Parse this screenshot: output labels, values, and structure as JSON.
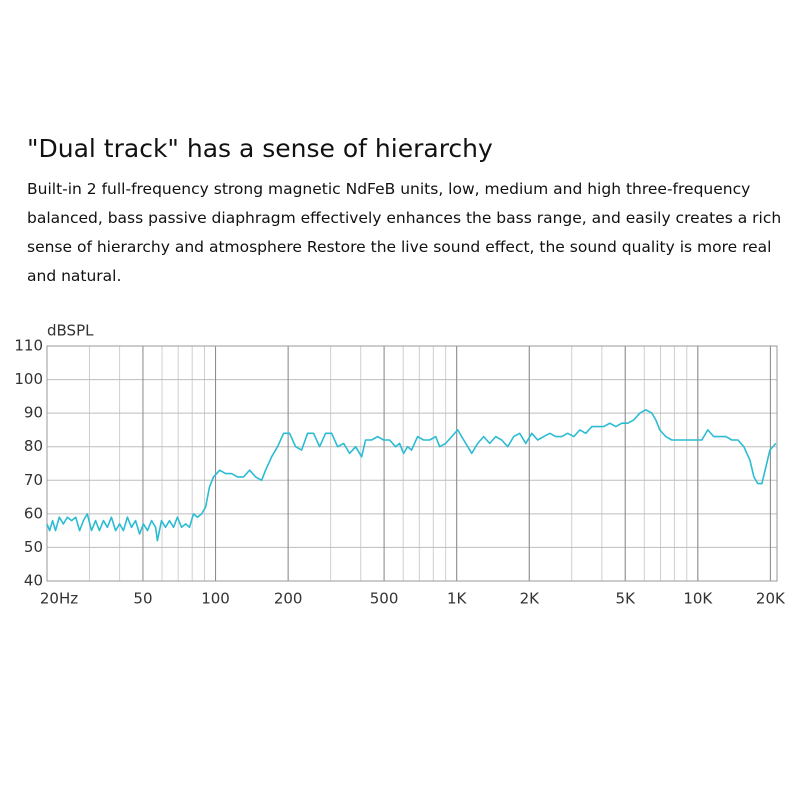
{
  "heading": "\"Dual track\" has a sense of hierarchy",
  "paragraph": [
    "Built-in 2 full-frequency  strong magnetic NdFeB units, low, medium and high three-frequency",
    "balanced, bass passive diaphragm effectively enhances the bass range, and easily creates a rich",
    "sense of hierarchy and atmosphere Restore the live sound effect, the sound quality is more real",
    "and natural."
  ],
  "chart_data": {
    "type": "line",
    "y_label": "dBSPL",
    "xscale": "log",
    "grid": true,
    "minor_grid": true,
    "xlim": [
      20,
      21300
    ],
    "ylim": [
      40,
      110
    ],
    "xticks": [
      {
        "value": 20,
        "label": "20Hz"
      },
      50,
      100,
      200,
      500,
      {
        "value": 1000,
        "label": "1K"
      },
      {
        "value": 2000,
        "label": "2K"
      },
      {
        "value": 5000,
        "label": "5K"
      },
      {
        "value": 10000,
        "label": "10K"
      },
      {
        "value": 20000,
        "label": "20K"
      }
    ],
    "yticks": [
      40,
      50,
      60,
      70,
      80,
      90,
      100,
      110
    ],
    "x": [
      20,
      20.5,
      21.1,
      21.7,
      22.5,
      23.4,
      24.3,
      25.3,
      26.3,
      27.3,
      28.3,
      29.4,
      30.6,
      31.8,
      33.0,
      34.3,
      35.6,
      37.0,
      38.5,
      40.0,
      41.5,
      43.1,
      44.8,
      46.6,
      48.4,
      50.2,
      52.2,
      54.3,
      56.4,
      57.4,
      59.7,
      62.0,
      64.4,
      66.9,
      69.5,
      72.3,
      75.1,
      78.0,
      81.0,
      84.2,
      87.5,
      90.9,
      94.4,
      98.1,
      104,
      110,
      116.5,
      123.4,
      130.7,
      138.4,
      146.6,
      155.2,
      161.3,
      170.8,
      180.9,
      191.6,
      202.9,
      214.8,
      227.5,
      240.9,
      255.1,
      270.2,
      286.1,
      303.0,
      320.9,
      339.8,
      359.8,
      381.0,
      403.5,
      419.1,
      443.8,
      470.0,
      497.7,
      527.2,
      558.3,
      580.0,
      602.6,
      626.1,
      650.4,
      688.8,
      729.4,
      772.7,
      818.3,
      850.2,
      900.4,
      953.5,
      1010,
      1069,
      1111,
      1154,
      1222,
      1294,
      1371,
      1452,
      1537,
      1628,
      1724,
      1826,
      1934,
      2048,
      2168,
      2296,
      2432,
      2575,
      2727,
      2888,
      3059,
      3239,
      3430,
      3633,
      3847,
      4074,
      4315,
      4569,
      4838,
      5124,
      5426,
      5746,
      6085,
      6444,
      6694,
      6953,
      7364,
      7798,
      8258,
      8745,
      9265,
      9810,
      10390,
      11000,
      11650,
      12340,
      13070,
      13840,
      14660,
      15520,
      16440,
      17080,
      17740,
      18440,
      19160,
      19910,
      21080
    ],
    "series": [
      {
        "color": "#2bbcd4",
        "values": [
          57,
          55,
          58,
          55,
          59,
          57,
          59,
          58,
          59,
          55,
          58,
          60,
          55,
          58,
          55,
          58,
          56,
          59,
          55,
          57,
          55,
          59,
          56,
          58,
          54,
          57,
          55,
          58,
          56,
          52,
          58,
          56,
          58,
          56,
          59,
          56,
          57,
          56,
          60,
          59,
          60,
          62,
          68,
          71,
          73,
          72,
          72,
          71,
          71,
          73,
          71,
          70,
          73,
          77,
          80,
          84,
          84,
          80,
          79,
          84,
          84,
          80,
          84,
          84,
          80,
          81,
          78,
          80,
          77,
          82,
          82,
          83,
          82,
          82,
          80,
          81,
          78,
          80,
          79,
          83,
          82,
          82,
          83,
          80,
          81,
          83,
          85,
          82,
          80,
          78,
          81,
          83,
          81,
          83,
          82,
          80,
          83,
          84,
          81,
          84,
          82,
          83,
          84,
          83,
          83,
          84,
          83,
          85,
          84,
          86,
          86,
          86,
          87,
          86,
          87,
          87,
          88,
          90,
          91,
          90,
          88,
          85,
          83,
          82,
          82,
          82,
          82,
          82,
          82,
          85,
          83,
          83,
          83,
          82,
          82,
          80,
          76,
          71,
          69,
          69,
          74,
          79,
          81
        ]
      }
    ]
  }
}
